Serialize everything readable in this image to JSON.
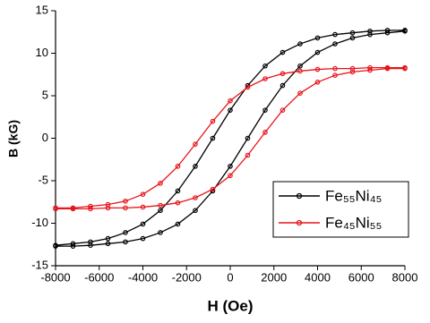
{
  "chart_data": {
    "type": "line",
    "x_label": "H (Oe)",
    "y_label": "B (kG)",
    "x": [
      -8000,
      -7200,
      -6400,
      -5600,
      -4800,
      -4000,
      -3200,
      -2400,
      -1600,
      -800,
      0,
      800,
      1600,
      2400,
      3200,
      4000,
      4800,
      5600,
      6400,
      7200,
      8000,
      8000,
      7200,
      6400,
      5600,
      4800,
      4000,
      3200,
      2400,
      1600,
      800,
      0,
      -800,
      -1600,
      -2400,
      -3200,
      -4000,
      -4800,
      -5600,
      -6400,
      -7200,
      -8000
    ],
    "series": [
      {
        "name": "Fe₅₅Ni₄₅",
        "color": "#000000",
        "values": [
          -12.7,
          -12.7,
          -12.6,
          -12.4,
          -12.2,
          -11.8,
          -11.1,
          -10.1,
          -8.5,
          -6.2,
          -3.3,
          0,
          3.3,
          6.2,
          8.5,
          10.1,
          11.1,
          11.8,
          12.2,
          12.4,
          12.6,
          12.7,
          12.7,
          12.6,
          12.4,
          12.2,
          11.8,
          11.1,
          10.1,
          8.5,
          6.2,
          3.3,
          0,
          -3.3,
          -6.2,
          -8.5,
          -10.1,
          -11.1,
          -11.8,
          -12.2,
          -12.4,
          -12.6
        ]
      },
      {
        "name": "Fe₄₅Ni₅₅",
        "color": "#e8141b",
        "values": [
          -8.3,
          -8.3,
          -8.3,
          -8.2,
          -8.2,
          -8.1,
          -7.9,
          -7.6,
          -7.0,
          -6.0,
          -4.4,
          -2.0,
          0.7,
          3.3,
          5.3,
          6.6,
          7.4,
          7.8,
          8.0,
          8.2,
          8.2,
          8.3,
          8.3,
          8.3,
          8.2,
          8.2,
          8.1,
          7.9,
          7.6,
          7.0,
          6.0,
          4.4,
          2.0,
          -0.7,
          -3.3,
          -5.3,
          -6.6,
          -7.4,
          -7.8,
          -8.0,
          -8.2,
          -8.2
        ]
      }
    ],
    "xlim": [
      -8000,
      8000
    ],
    "xticks": [
      -8000,
      -6000,
      -4000,
      -2000,
      0,
      2000,
      4000,
      6000,
      8000
    ],
    "ylim": [
      -15,
      15
    ],
    "yticks": [
      -15,
      -10,
      -5,
      0,
      5,
      10,
      15
    ],
    "grid": false,
    "legend": "lower right",
    "markers": true
  }
}
